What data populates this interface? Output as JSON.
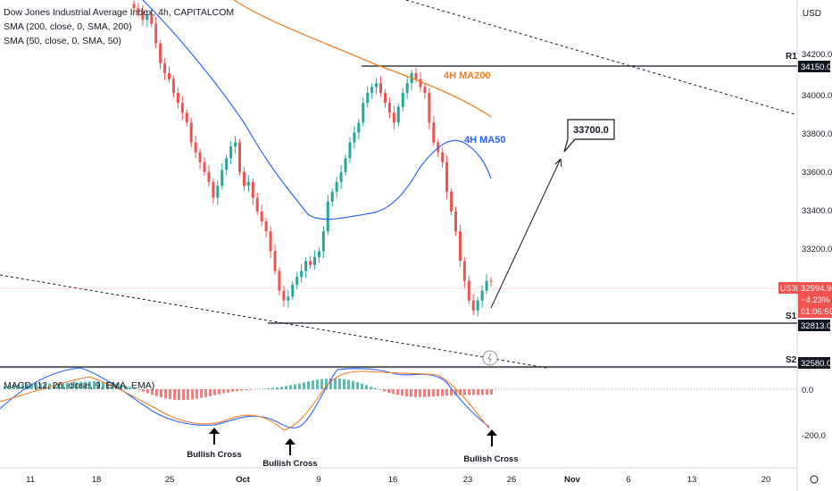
{
  "legend": {
    "title": "Dow Jones Industrial Average Index, 4h, CAPITALCOM",
    "sma200": "SMA (200, close, 0, SMA, 200)",
    "sma50": "SMA (50, close, 0, SMA, 50)"
  },
  "macd_title": "MACD (12, 26, close, 9, EMA, EMA)",
  "currency": "USD",
  "colors": {
    "up": "#26a69a",
    "down": "#ef5350",
    "ma200": "#f57c20",
    "ma50": "#2962ff",
    "text": "#131722"
  },
  "annotations": {
    "ma200_label": "4H MA200",
    "ma50_label": "4H MA50",
    "target": "33700.0",
    "r1": "R1",
    "s1": "S1",
    "s2": "S2",
    "bullish_cross": "Bullish Cross"
  },
  "price_badges": {
    "symbol": "US30",
    "last": "32994.9",
    "change": "−4.23%",
    "countdown": "01:06:59",
    "r1_value": "34150.0",
    "s1_value": "32813.0",
    "s2_value": "32580.0"
  },
  "chart_data": {
    "type": "candlestick",
    "price_axis": {
      "ticks": [
        "34200.0",
        "34000.0",
        "33800.0",
        "33600.0",
        "33400.0",
        "33200.0"
      ],
      "range": [
        32560,
        34420
      ]
    },
    "macd_axis": {
      "ticks": [
        "0.0",
        "-200.0"
      ]
    },
    "x_axis": {
      "ticks": [
        "11",
        "18",
        "25",
        "Oct",
        "9",
        "16",
        "23",
        "26",
        "Nov",
        "6",
        "13",
        "20"
      ]
    },
    "levels": {
      "R1": 34150.0,
      "S1": 32813.0,
      "S2": 32580.0
    },
    "target": 33700.0,
    "series": [
      {
        "name": "4H MA200"
      },
      {
        "name": "4H MA50"
      }
    ],
    "close_path": [
      34380,
      34360,
      34320,
      34350,
      34300,
      34200,
      34100,
      34050,
      34020,
      33950,
      33900,
      33850,
      33800,
      33700,
      33650,
      33600,
      33550,
      33500,
      33420,
      33480,
      33560,
      33620,
      33680,
      33700,
      33550,
      33480,
      33500,
      33420,
      33350,
      33300,
      33250,
      33150,
      33050,
      32950,
      32900,
      32920,
      32980,
      33020,
      33050,
      33100,
      33080,
      33120,
      33150,
      33250,
      33400,
      33450,
      33500,
      33550,
      33620,
      33700,
      33750,
      33800,
      33900,
      33950,
      33980,
      34000,
      33950,
      33900,
      33850,
      33800,
      33880,
      33950,
      34000,
      34050,
      34020,
      33980,
      33950,
      33800,
      33700,
      33650,
      33600,
      33450,
      33350,
      33250,
      33100,
      33000,
      32900,
      32850,
      32900,
      32950,
      33000,
      32994.9
    ]
  }
}
